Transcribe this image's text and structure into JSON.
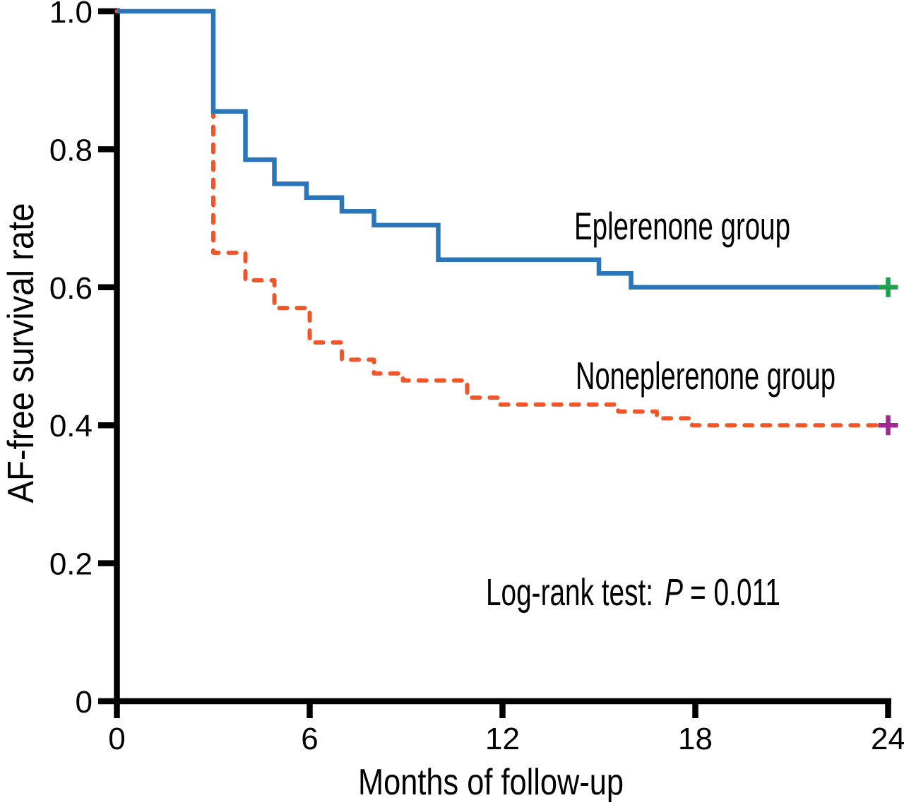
{
  "figure": {
    "background_color": "#ffffff",
    "axis_color": "#000000"
  },
  "chart_data": {
    "type": "line",
    "subtype": "kaplan_meier_step",
    "title": "",
    "xlabel": "Months of follow-up",
    "ylabel": "AF-free survival rate",
    "xlim": [
      0,
      24
    ],
    "ylim": [
      0,
      1.0
    ],
    "grid": false,
    "x_ticks": [
      0,
      6,
      12,
      18,
      24
    ],
    "x_tick_labels": [
      "0",
      "6",
      "12",
      "18",
      "24"
    ],
    "y_ticks": [
      1.0,
      0.8,
      0.6,
      0.4,
      0.2,
      0
    ],
    "y_tick_labels": [
      "1.0",
      "0.8",
      "0.6",
      "0.4",
      "0.2",
      "0"
    ],
    "legend_position": "inline-right-of-curves",
    "series": [
      {
        "name": "Noneplerenone group",
        "line_style": "dashed",
        "color": "#F0562A",
        "steps": [
          [
            0,
            1.0
          ],
          [
            3,
            0.65
          ],
          [
            4,
            0.61
          ],
          [
            4.9,
            0.57
          ],
          [
            6,
            0.52
          ],
          [
            7,
            0.495
          ],
          [
            8,
            0.475
          ],
          [
            8.9,
            0.465
          ],
          [
            10.9,
            0.44
          ],
          [
            11.9,
            0.43
          ],
          [
            15.6,
            0.42
          ],
          [
            16.8,
            0.41
          ],
          [
            17.9,
            0.4
          ]
        ],
        "end_month": 24,
        "final_value": 0.4,
        "censor_mark": {
          "month": 24,
          "value": 0.4,
          "symbol": "+",
          "color": "#A02890"
        }
      },
      {
        "name": "Eplerenone group",
        "line_style": "solid",
        "color": "#2B76B9",
        "steps": [
          [
            0,
            1.0
          ],
          [
            3,
            0.855
          ],
          [
            4,
            0.785
          ],
          [
            4.9,
            0.75
          ],
          [
            5.9,
            0.73
          ],
          [
            7,
            0.71
          ],
          [
            8,
            0.69
          ],
          [
            10,
            0.64
          ],
          [
            15,
            0.62
          ],
          [
            16,
            0.6
          ]
        ],
        "end_month": 24,
        "final_value": 0.6,
        "censor_mark": {
          "month": 24,
          "value": 0.6,
          "symbol": "+",
          "color": "#1FA24E"
        }
      }
    ],
    "annotation": {
      "prefix": "Log-rank test:",
      "stat_symbol": "P",
      "rest": "= 0.011"
    }
  }
}
